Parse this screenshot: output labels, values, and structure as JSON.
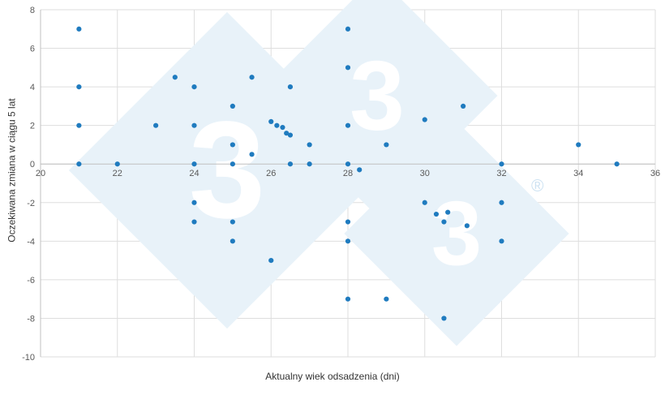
{
  "chart_data": {
    "type": "scatter",
    "title": "",
    "xlabel": "Aktualny wiek odsadzenia (dni)",
    "ylabel": "Oczekiwana zmiana w ciągu 5 lat",
    "xlim": [
      20,
      36
    ],
    "ylim": [
      -10,
      8
    ],
    "x_ticks": [
      20,
      22,
      24,
      26,
      28,
      30,
      32,
      34,
      36
    ],
    "y_ticks": [
      8,
      6,
      4,
      2,
      0,
      -2,
      -4,
      -6,
      -8,
      -10
    ],
    "grid": true,
    "legend": "none",
    "point_color": "#1f7bbf",
    "grid_color": "#dedede",
    "axis_color": "#c0c0c0",
    "tick_color": "#595959",
    "points": [
      [
        21,
        7
      ],
      [
        21,
        4
      ],
      [
        21,
        2
      ],
      [
        21,
        0
      ],
      [
        22,
        0
      ],
      [
        23,
        2
      ],
      [
        23.5,
        4.5
      ],
      [
        24,
        4
      ],
      [
        24,
        2
      ],
      [
        24,
        0
      ],
      [
        24,
        -2
      ],
      [
        24,
        -3
      ],
      [
        25,
        3
      ],
      [
        25,
        1
      ],
      [
        25,
        0
      ],
      [
        25,
        -3
      ],
      [
        25,
        -4
      ],
      [
        25.5,
        4.5
      ],
      [
        25.5,
        0.5
      ],
      [
        26,
        2.2
      ],
      [
        26.15,
        2.0
      ],
      [
        26.3,
        1.9
      ],
      [
        26.4,
        1.6
      ],
      [
        26.5,
        1.5
      ],
      [
        26,
        -5
      ],
      [
        26.5,
        4
      ],
      [
        26.5,
        0
      ],
      [
        27,
        1
      ],
      [
        27,
        0
      ],
      [
        28,
        7
      ],
      [
        28,
        5
      ],
      [
        28,
        2
      ],
      [
        28,
        0
      ],
      [
        28,
        -3
      ],
      [
        28,
        -4
      ],
      [
        28,
        -7
      ],
      [
        28.3,
        -0.3
      ],
      [
        29,
        1
      ],
      [
        29,
        -7
      ],
      [
        30,
        2.3
      ],
      [
        30,
        -2
      ],
      [
        30.3,
        -2.6
      ],
      [
        30.6,
        -2.5
      ],
      [
        30.5,
        -3
      ],
      [
        30.5,
        -8
      ],
      [
        31,
        3
      ],
      [
        31.1,
        -3.2
      ],
      [
        32,
        0
      ],
      [
        32,
        -2
      ],
      [
        32,
        -4
      ],
      [
        34,
        1
      ],
      [
        35,
        0
      ]
    ]
  },
  "watermark": {
    "glyphs": [
      "3",
      "3",
      "3"
    ],
    "registered": "®",
    "fill": "#e8f2f9",
    "glyph_color": "#ffffff",
    "registered_color": "#cde2f2"
  }
}
